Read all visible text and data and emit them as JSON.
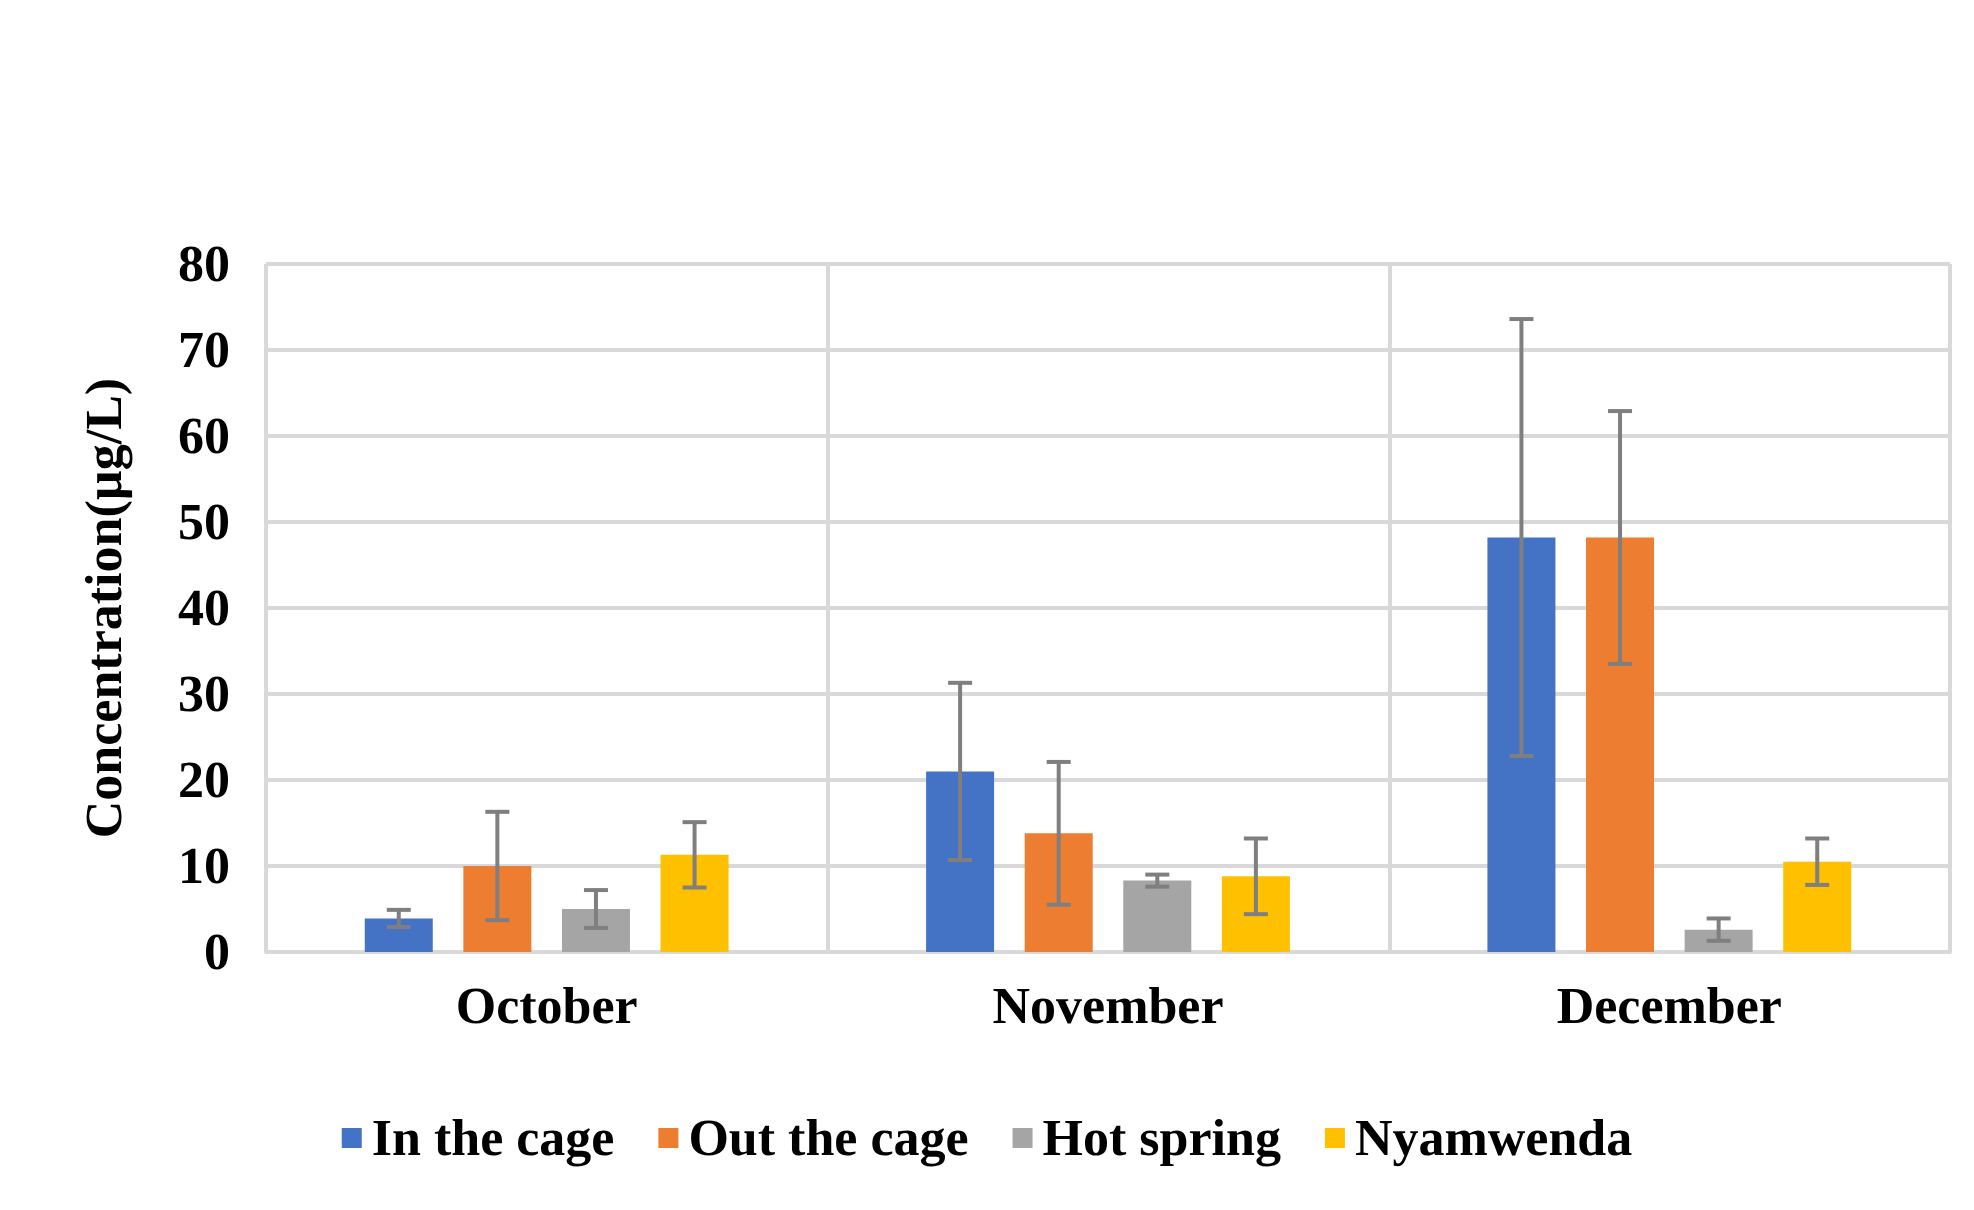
{
  "chart_data": {
    "type": "bar",
    "ylabel": "Concentration(µg/L)",
    "categories": [
      "October",
      "November",
      "December"
    ],
    "series": [
      {
        "name": "In the cage",
        "color": "#4472c4",
        "values": [
          3.9,
          21,
          48.2
        ],
        "errors": [
          1,
          10.3,
          25.4
        ]
      },
      {
        "name": "Out the cage",
        "color": "#ed7d31",
        "values": [
          10,
          13.8,
          48.2
        ],
        "errors": [
          6.3,
          8.3,
          14.7
        ]
      },
      {
        "name": "Hot spring",
        "color": "#a5a5a5",
        "values": [
          5,
          8.3,
          2.6
        ],
        "errors": [
          2.2,
          0.7,
          1.3
        ]
      },
      {
        "name": "Nyamwenda",
        "color": "#ffc000",
        "values": [
          11.3,
          8.8,
          10.5
        ],
        "errors": [
          3.8,
          4.4,
          2.7
        ]
      }
    ],
    "ylim": [
      0,
      80
    ],
    "yticks": [
      0,
      10,
      20,
      30,
      40,
      50,
      60,
      70,
      80
    ],
    "grid": true,
    "legend": "bottom"
  }
}
